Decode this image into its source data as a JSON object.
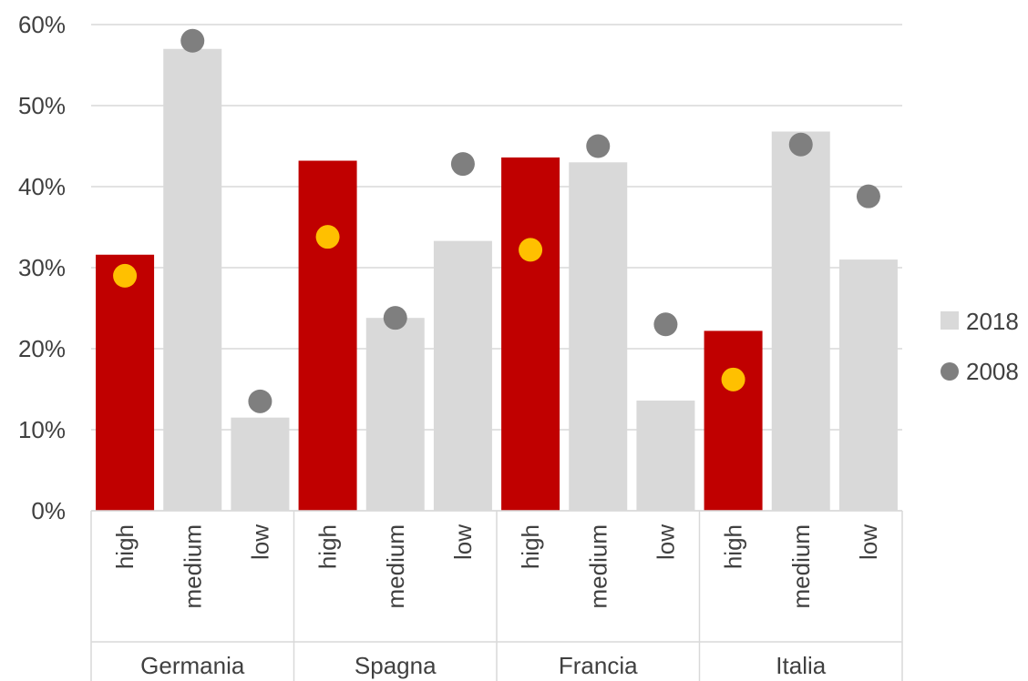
{
  "chart_data": {
    "type": "bar",
    "ylim": [
      0,
      0.6
    ],
    "ytick_step": 0.1,
    "yticks": [
      "0%",
      "10%",
      "20%",
      "30%",
      "40%",
      "50%",
      "60%"
    ],
    "grid": true,
    "legend_position": "right",
    "groups": [
      {
        "name": "Germania",
        "categories": [
          "high",
          "medium",
          "low"
        ]
      },
      {
        "name": "Spagna",
        "categories": [
          "high",
          "medium",
          "low"
        ]
      },
      {
        "name": "Francia",
        "categories": [
          "high",
          "medium",
          "low"
        ]
      },
      {
        "name": "Italia",
        "categories": [
          "high",
          "medium",
          "low"
        ]
      }
    ],
    "series": [
      {
        "name": "2018",
        "kind": "bar",
        "values": [
          0.316,
          0.57,
          0.115,
          0.432,
          0.238,
          0.333,
          0.436,
          0.43,
          0.136,
          0.222,
          0.468,
          0.31
        ]
      },
      {
        "name": "2008",
        "kind": "dot",
        "values": [
          0.29,
          0.58,
          0.135,
          0.338,
          0.238,
          0.428,
          0.322,
          0.45,
          0.23,
          0.162,
          0.452,
          0.388
        ]
      }
    ],
    "colors": {
      "bar_default": "#d9d9d9",
      "bar_highlight": "#c00000",
      "dot_default": "#7f7f7f",
      "dot_highlight": "#ffc000",
      "gridline": "#d9d9d9",
      "axis_text": "#404040"
    },
    "highlight_category": "high"
  }
}
